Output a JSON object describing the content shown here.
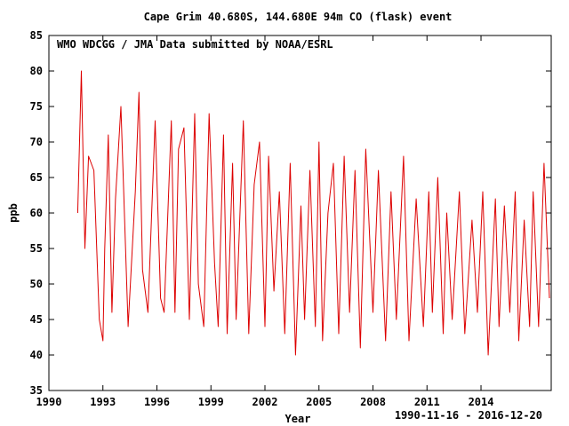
{
  "chart_data": {
    "type": "line",
    "title": "Cape Grim 40.680S, 144.680E 94m    CO (flask)  event",
    "annotation": "WMO WDCGG / JMA   Data submitted by NOAA/ESRL",
    "xlabel": "Year",
    "ylabel": "ppb",
    "date_range": "1990-11-16 - 2016-12-20",
    "xlim": [
      1990,
      2017.9
    ],
    "ylim": [
      35,
      85
    ],
    "x_ticks": [
      1990,
      1993,
      1996,
      1999,
      2002,
      2005,
      2008,
      2011,
      2014
    ],
    "x_tick_labels": [
      "1990",
      "1993",
      "1996",
      "1999",
      "2002",
      "2005",
      "2008",
      "2011",
      "2014"
    ],
    "y_ticks": [
      35,
      40,
      45,
      50,
      55,
      60,
      65,
      70,
      75,
      80,
      85
    ],
    "y_tick_labels": [
      "35",
      "40",
      "45",
      "50",
      "55",
      "60",
      "65",
      "70",
      "75",
      "80",
      "85"
    ],
    "grid": false,
    "line_color": "#dd0000",
    "series": [
      {
        "x": [
          1991.6,
          1991.8,
          1992.0,
          1992.2,
          1992.5,
          1992.8,
          1993.0,
          1993.1,
          1993.3,
          1993.5,
          1993.7,
          1994.0,
          1994.4,
          1994.8,
          1995.0,
          1995.2,
          1995.5,
          1995.9,
          1996.2,
          1996.4,
          1996.8,
          1997.0,
          1997.2,
          1997.5,
          1997.8,
          1998.1,
          1998.3,
          1998.6,
          1998.9,
          1999.2,
          1999.4,
          1999.7,
          1999.9,
          2000.2,
          2000.4,
          2000.8,
          2001.1,
          2001.4,
          2001.7,
          2002.0,
          2002.2,
          2002.5,
          2002.8,
          2003.1,
          2003.4,
          2003.7,
          2004.0,
          2004.2,
          2004.5,
          2004.8,
          2005.0,
          2005.2,
          2005.5,
          2005.8,
          2006.1,
          2006.4,
          2006.7,
          2007.0,
          2007.3,
          2007.6,
          2008.0,
          2008.3,
          2008.7,
          2009.0,
          2009.3,
          2009.7,
          2010.0,
          2010.4,
          2010.8,
          2011.1,
          2011.3,
          2011.6,
          2011.9,
          2012.1,
          2012.4,
          2012.8,
          2013.1,
          2013.5,
          2013.8,
          2014.1,
          2014.4,
          2014.8,
          2015.0,
          2015.3,
          2015.6,
          2015.9,
          2016.1,
          2016.4,
          2016.7,
          2016.9,
          2017.2,
          2017.5,
          2017.8
        ],
        "y": [
          60,
          80,
          55,
          68,
          66,
          45,
          42,
          55,
          71,
          46,
          62,
          75,
          44,
          63,
          77,
          52,
          46,
          73,
          48,
          46,
          73,
          46,
          69,
          72,
          45,
          74,
          50,
          44,
          74,
          53,
          44,
          71,
          43,
          67,
          45,
          73,
          43,
          64,
          70,
          44,
          68,
          49,
          63,
          43,
          67,
          40,
          61,
          45,
          66,
          44,
          70,
          42,
          60,
          67,
          43,
          68,
          46,
          66,
          41,
          69,
          46,
          66,
          42,
          63,
          45,
          68,
          42,
          62,
          44,
          63,
          46,
          65,
          43,
          60,
          45,
          63,
          43,
          59,
          46,
          63,
          40,
          62,
          44,
          61,
          46,
          63,
          42,
          59,
          44,
          63,
          44,
          67,
          48
        ]
      }
    ]
  }
}
